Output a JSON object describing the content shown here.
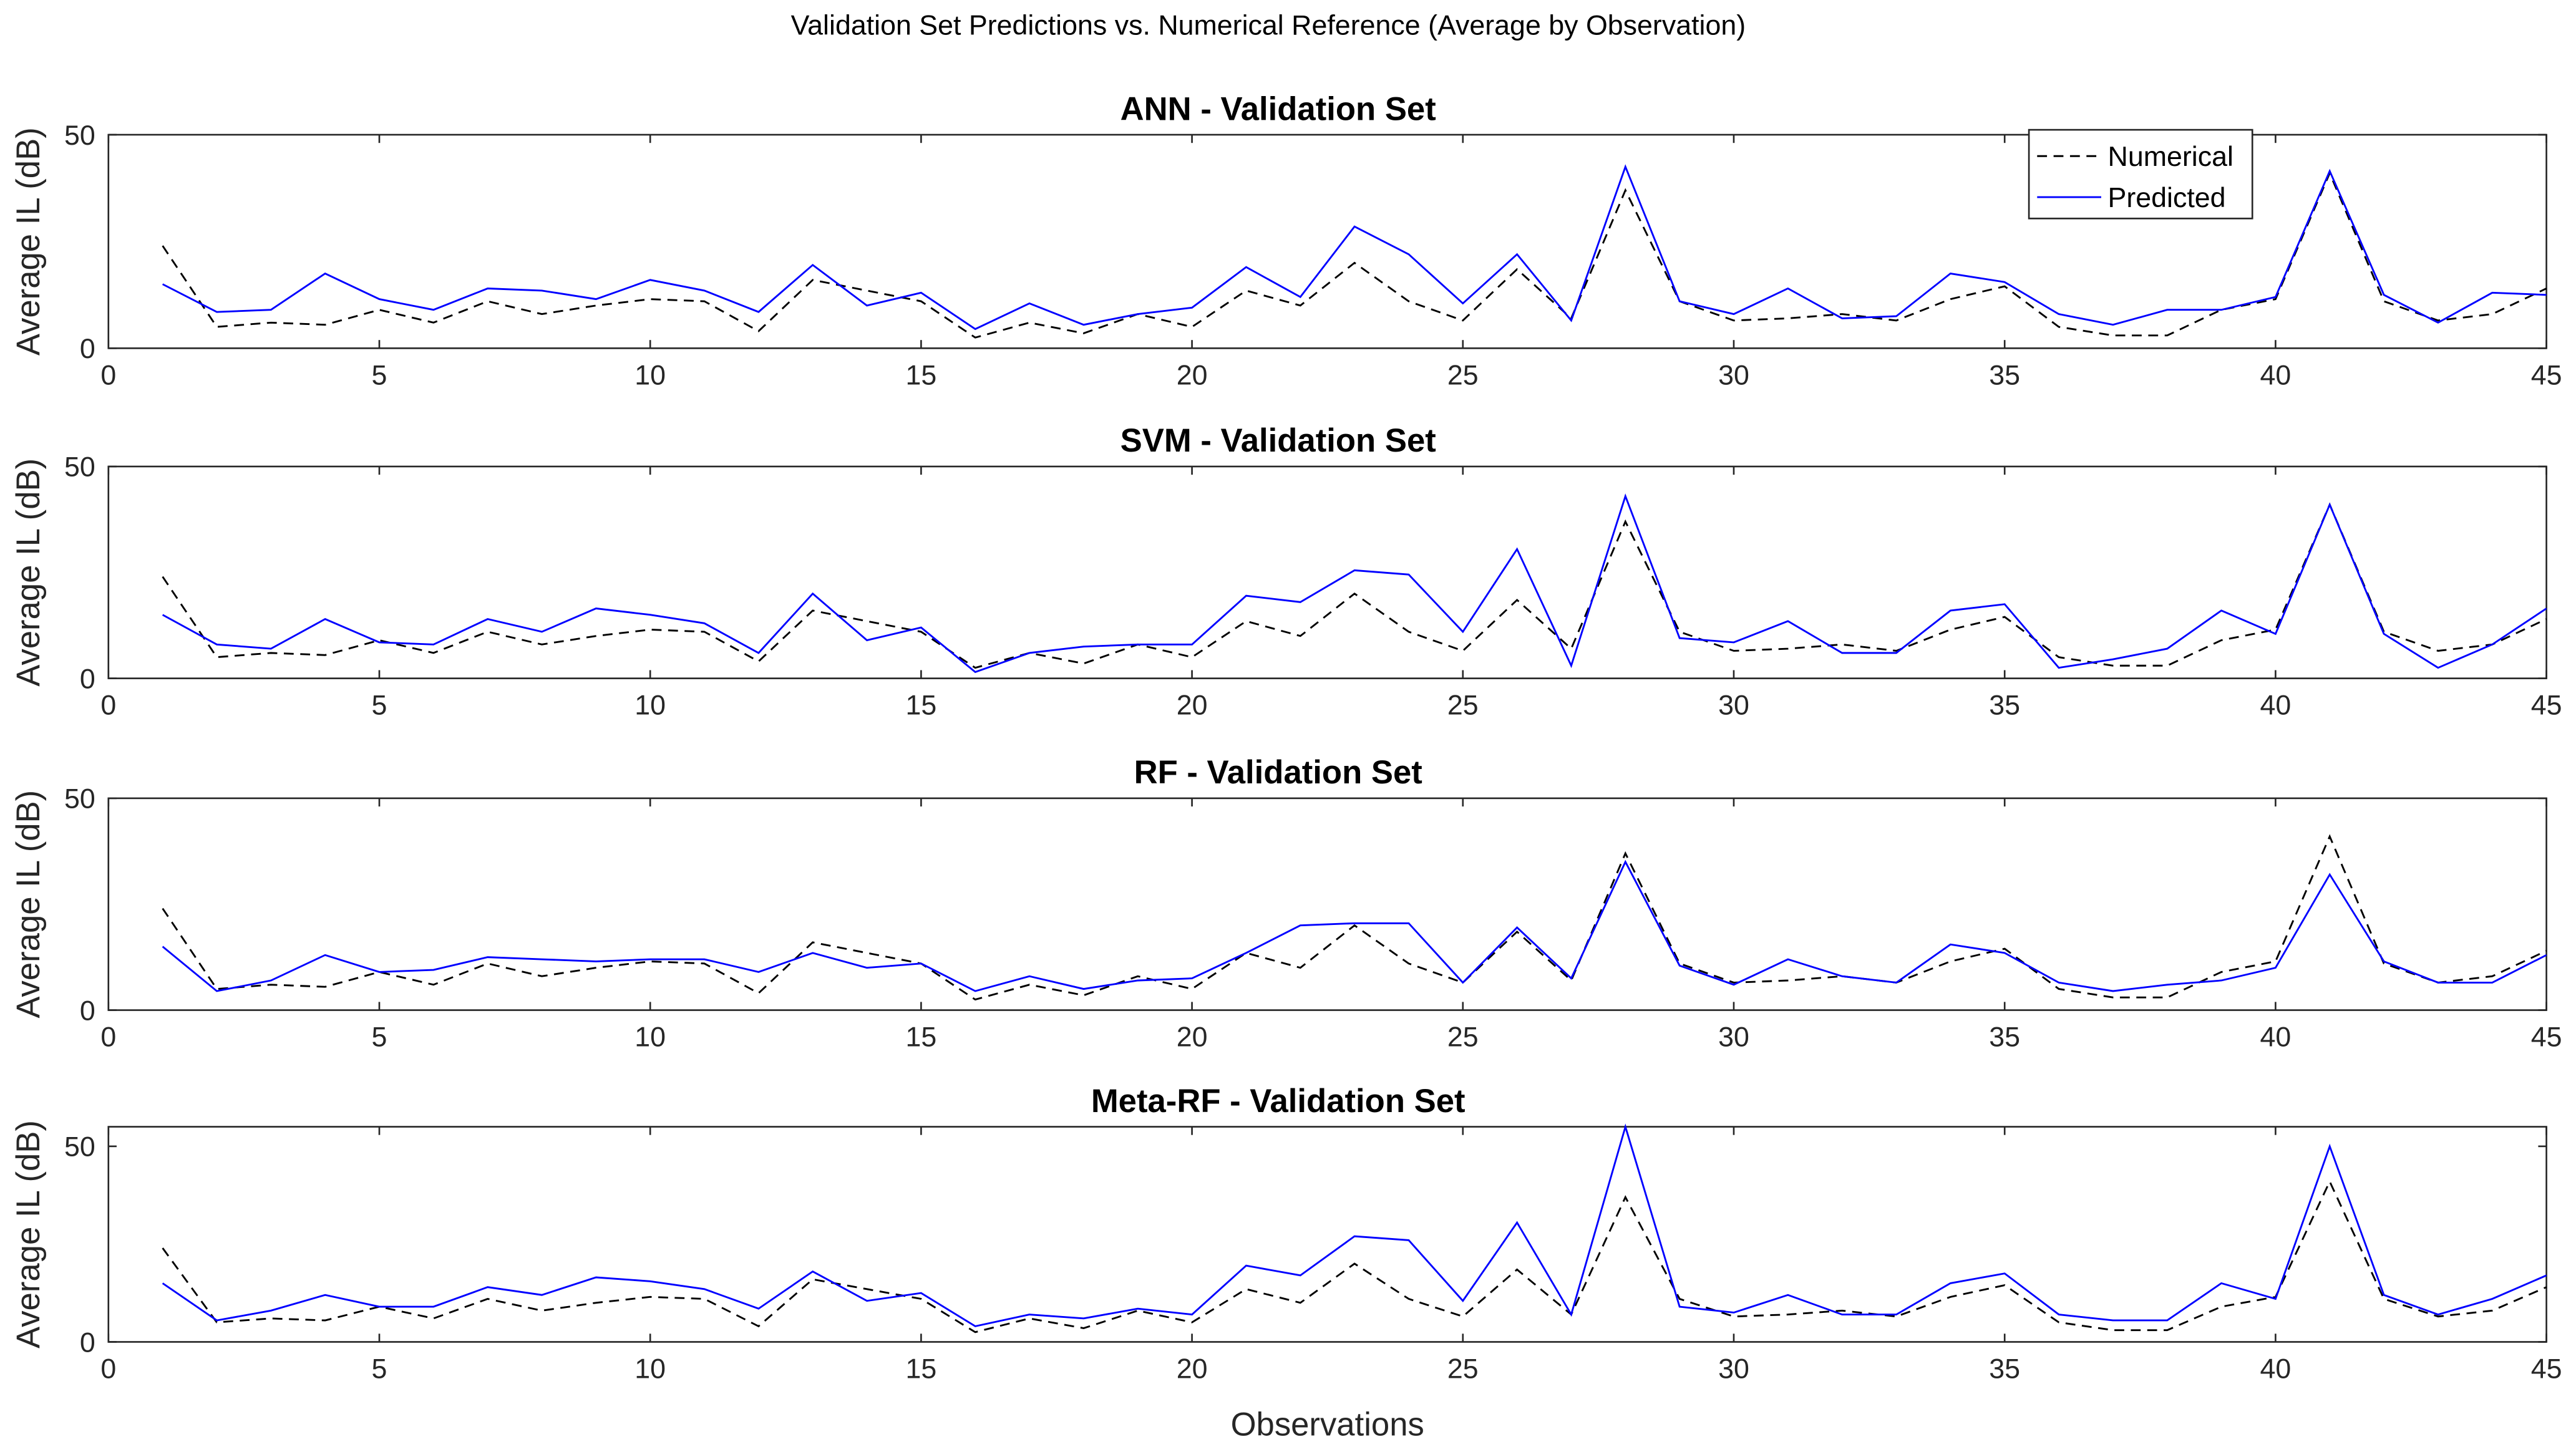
{
  "chart_data": [
    {
      "type": "line",
      "title": "ANN - Validation Set",
      "xlabel": "",
      "ylabel": "Average IL (dB)",
      "xlim": [
        0,
        45
      ],
      "ylim": [
        0,
        50
      ],
      "xticks": [
        0,
        5,
        10,
        15,
        20,
        25,
        30,
        35,
        40,
        45
      ],
      "yticks": [
        0,
        50
      ],
      "legend": {
        "placement": "top-right",
        "entries": [
          "Numerical",
          "Predicted"
        ]
      },
      "series": [
        {
          "name": "Numerical",
          "style": "dashed",
          "color": "#000000",
          "values": [
            24,
            5,
            6,
            5.5,
            9,
            6,
            11,
            8,
            10,
            11.5,
            11,
            4,
            16,
            13.5,
            11,
            2.5,
            6,
            3.5,
            8,
            5,
            13.5,
            10,
            20,
            11,
            6.5,
            18.5,
            7,
            37,
            11,
            6.5,
            7,
            8,
            6.5,
            11.5,
            14.5,
            5,
            3,
            3,
            9,
            11.5,
            41,
            11,
            6.5,
            8,
            14
          ]
        },
        {
          "name": "Predicted",
          "style": "solid",
          "color": "#0000FF",
          "values": [
            15,
            8.5,
            9,
            17.5,
            11.5,
            9,
            14,
            13.5,
            11.5,
            16,
            13.5,
            8.5,
            19.5,
            10,
            13,
            4.5,
            10.5,
            5.5,
            8,
            9.5,
            19,
            12,
            28.5,
            22,
            10.5,
            22,
            6.5,
            42.5,
            11,
            8,
            14,
            7,
            7.5,
            17.5,
            15.5,
            8,
            5.5,
            9,
            9,
            12,
            41.5,
            12.5,
            6,
            13,
            12.5
          ]
        }
      ]
    },
    {
      "type": "line",
      "title": "SVM - Validation Set",
      "xlabel": "",
      "ylabel": "Average IL (dB)",
      "xlim": [
        0,
        45
      ],
      "ylim": [
        0,
        50
      ],
      "xticks": [
        0,
        5,
        10,
        15,
        20,
        25,
        30,
        35,
        40,
        45
      ],
      "yticks": [
        0,
        50
      ],
      "series": [
        {
          "name": "Numerical",
          "style": "dashed",
          "color": "#000000",
          "values": [
            24,
            5,
            6,
            5.5,
            9,
            6,
            11,
            8,
            10,
            11.5,
            11,
            4,
            16,
            13.5,
            11,
            2.5,
            6,
            3.5,
            8,
            5,
            13.5,
            10,
            20,
            11,
            6.5,
            18.5,
            7,
            37,
            11,
            6.5,
            7,
            8,
            6.5,
            11.5,
            14.5,
            5,
            3,
            3,
            9,
            11.5,
            41,
            11,
            6.5,
            8,
            14
          ]
        },
        {
          "name": "Predicted",
          "style": "solid",
          "color": "#0000FF",
          "values": [
            15,
            8,
            7,
            14,
            8.5,
            8,
            14,
            11,
            16.5,
            15,
            13,
            6,
            20,
            9,
            12,
            1.5,
            6,
            7.5,
            8,
            8,
            19.5,
            18,
            25.5,
            24.5,
            11,
            30.5,
            3,
            43,
            9.5,
            8.5,
            13.5,
            6,
            6,
            16,
            17.5,
            2.5,
            4.5,
            7,
            16,
            10.5,
            41,
            10.5,
            2.5,
            8,
            16.5
          ]
        }
      ]
    },
    {
      "type": "line",
      "title": "RF - Validation Set",
      "xlabel": "",
      "ylabel": "Average IL (dB)",
      "xlim": [
        0,
        45
      ],
      "ylim": [
        0,
        50
      ],
      "xticks": [
        0,
        5,
        10,
        15,
        20,
        25,
        30,
        35,
        40,
        45
      ],
      "yticks": [
        0,
        50
      ],
      "series": [
        {
          "name": "Numerical",
          "style": "dashed",
          "color": "#000000",
          "values": [
            24,
            5,
            6,
            5.5,
            9,
            6,
            11,
            8,
            10,
            11.5,
            11,
            4,
            16,
            13.5,
            11,
            2.5,
            6,
            3.5,
            8,
            5,
            13.5,
            10,
            20,
            11,
            6.5,
            18.5,
            7,
            37,
            11,
            6.5,
            7,
            8,
            6.5,
            11.5,
            14.5,
            5,
            3,
            3,
            9,
            11.5,
            41,
            11,
            6.5,
            8,
            14
          ]
        },
        {
          "name": "Predicted",
          "style": "solid",
          "color": "#0000FF",
          "values": [
            15,
            4.5,
            7,
            13,
            9,
            9.5,
            12.5,
            12,
            11.5,
            12,
            12,
            9,
            13.5,
            10,
            11,
            4.5,
            8,
            5,
            7,
            7.5,
            13.5,
            20,
            20.5,
            20.5,
            6.5,
            19.5,
            7.5,
            35,
            10.5,
            6,
            12,
            8,
            6.5,
            15.5,
            13.5,
            6.5,
            4.5,
            6,
            7,
            10,
            32,
            11.5,
            6.5,
            6.5,
            13
          ]
        }
      ]
    },
    {
      "type": "line",
      "title": "Meta-RF - Validation Set",
      "xlabel": "Observations",
      "ylabel": "Average IL (dB)",
      "xlim": [
        0,
        45
      ],
      "ylim": [
        0,
        55
      ],
      "xticks": [
        0,
        5,
        10,
        15,
        20,
        25,
        30,
        35,
        40,
        45
      ],
      "yticks": [
        0,
        50
      ],
      "series": [
        {
          "name": "Numerical",
          "style": "dashed",
          "color": "#000000",
          "values": [
            24,
            5,
            6,
            5.5,
            9,
            6,
            11,
            8,
            10,
            11.5,
            11,
            4,
            16,
            13.5,
            11,
            2.5,
            6,
            3.5,
            8,
            5,
            13.5,
            10,
            20,
            11,
            6.5,
            18.5,
            7,
            37,
            11,
            6.5,
            7,
            8,
            6.5,
            11.5,
            14.5,
            5,
            3,
            3,
            9,
            11.5,
            41,
            11,
            6.5,
            8,
            14
          ]
        },
        {
          "name": "Predicted",
          "style": "solid",
          "color": "#0000FF",
          "values": [
            15,
            5.5,
            8,
            12,
            9,
            9,
            14,
            12,
            16.5,
            15.5,
            13.5,
            8.5,
            18,
            10.5,
            12.5,
            4,
            7,
            6,
            8.5,
            7,
            19.5,
            17,
            27,
            26,
            10.5,
            30.5,
            7,
            55,
            9,
            7.5,
            12,
            7,
            7,
            15,
            17.5,
            7,
            5.5,
            5.5,
            15,
            11,
            50,
            12,
            7,
            11,
            17
          ]
        }
      ]
    }
  ],
  "figure": {
    "suptitle": "Validation Set Predictions vs. Numerical Reference (Average by Observation)"
  }
}
